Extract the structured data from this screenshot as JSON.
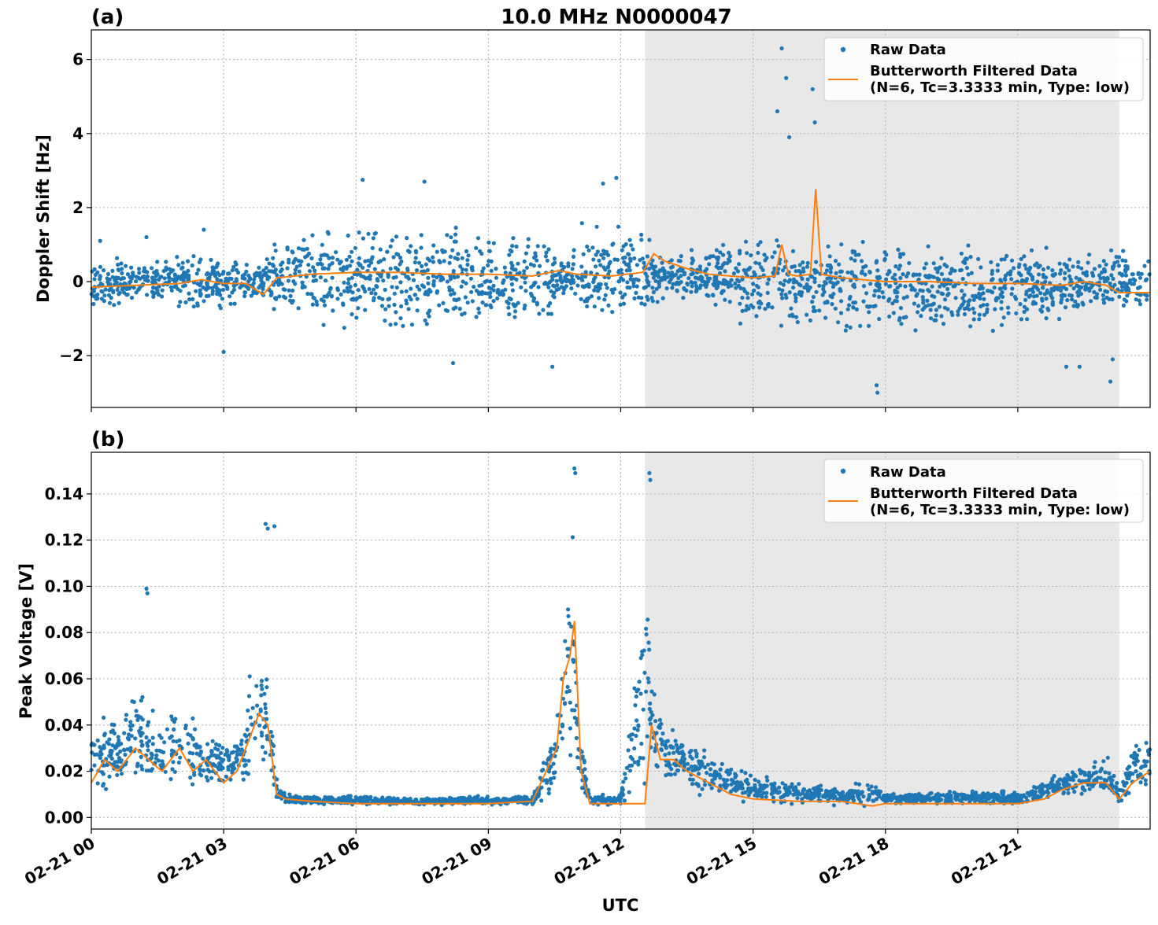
{
  "figure": {
    "title": "10.0 MHz N0000047",
    "xlabel": "UTC",
    "colors": {
      "raw": "#1f77b4",
      "filtered": "#ff7f0e",
      "shade": "#e8e8e8"
    }
  },
  "legend": {
    "raw_label": "Raw Data",
    "filtered_label_line1": "Butterworth Filtered Data",
    "filtered_label_line2": "(N=6, Tc=3.3333 min, Type: low)"
  },
  "chart_data": [
    {
      "type": "scatter",
      "panel_label": "(a)",
      "title": "10.0 MHz N0000047",
      "ylabel": "Doppler Shift [Hz]",
      "xlim": [
        0,
        24
      ],
      "ylim": [
        -3.4,
        6.8
      ],
      "yticks": [
        -2,
        0,
        2,
        4,
        6
      ],
      "ytick_labels": [
        "−2",
        "0",
        "2",
        "4",
        "6"
      ],
      "xticks": [
        0,
        3,
        6,
        9,
        12,
        15,
        18,
        21
      ],
      "xtick_labels": [
        "02-21 00",
        "02-21 03",
        "02-21 06",
        "02-21 09",
        "02-21 12",
        "02-21 15",
        "02-21 18",
        "02-21 21"
      ],
      "shaded_interval": [
        12.55,
        23.3
      ],
      "grid": true,
      "legend_position": "top-right",
      "series": [
        {
          "name": "Raw Data",
          "kind": "scatter",
          "x": [
            0.0,
            1.0,
            2.0,
            3.0,
            3.9,
            4.2,
            5.0,
            6.0,
            7.0,
            8.0,
            9.0,
            10.0,
            10.6,
            10.75,
            11.0,
            12.0,
            12.55,
            13.0,
            14.0,
            15.0,
            15.5,
            16.0,
            17.0,
            18.0,
            19.0,
            20.0,
            21.0,
            22.0,
            23.0,
            24.0
          ],
          "y_min": [
            -1.0,
            -0.8,
            -0.9,
            -0.9,
            -0.6,
            -1.2,
            -1.5,
            -1.6,
            -1.7,
            -1.6,
            -1.6,
            -1.5,
            -1.1,
            -0.4,
            -1.4,
            -1.4,
            -1.0,
            -0.5,
            -0.8,
            -1.5,
            -1.8,
            -1.6,
            -1.7,
            -1.6,
            -1.6,
            -1.6,
            -1.4,
            -1.3,
            -1.1,
            -1.0
          ],
          "y_max": [
            0.8,
            0.8,
            0.9,
            0.9,
            0.5,
            1.6,
            1.8,
            1.7,
            1.8,
            1.7,
            1.6,
            1.6,
            1.2,
            0.4,
            1.8,
            1.8,
            1.4,
            0.8,
            1.2,
            1.4,
            1.6,
            1.5,
            1.4,
            1.4,
            1.3,
            1.3,
            1.2,
            1.1,
            1.1,
            0.9
          ],
          "outlier_x": [
            15.55,
            15.65,
            15.75,
            15.82,
            16.35,
            16.4,
            0.2,
            1.25,
            2.55,
            3.0,
            6.15,
            7.55,
            8.2,
            10.45,
            11.6,
            11.9,
            17.8,
            17.82,
            22.1,
            22.4,
            23.1,
            23.15
          ],
          "outlier_y": [
            4.6,
            6.3,
            5.5,
            3.9,
            5.2,
            4.3,
            1.1,
            1.2,
            1.4,
            -1.9,
            2.75,
            2.7,
            -2.2,
            -2.3,
            2.65,
            2.8,
            -2.8,
            -3.0,
            -2.3,
            -2.3,
            -2.7,
            -2.1
          ]
        },
        {
          "name": "Butterworth Filtered Data (N=6, Tc=3.3333 min, Type: low)",
          "kind": "line",
          "x": [
            0.0,
            1.0,
            2.0,
            2.5,
            3.0,
            3.5,
            3.9,
            4.2,
            5.0,
            6.0,
            7.0,
            8.0,
            9.0,
            10.0,
            10.6,
            11.0,
            11.8,
            12.5,
            12.75,
            13.0,
            13.5,
            14.0,
            15.0,
            15.5,
            15.65,
            15.8,
            16.0,
            16.3,
            16.42,
            16.55,
            17.0,
            18.0,
            19.0,
            20.0,
            21.0,
            22.0,
            22.5,
            23.0,
            23.3,
            24.0
          ],
          "y": [
            -0.15,
            -0.1,
            -0.05,
            0.05,
            -0.05,
            -0.05,
            -0.35,
            0.1,
            0.2,
            0.25,
            0.25,
            0.2,
            0.2,
            0.15,
            0.3,
            0.2,
            0.15,
            0.25,
            0.75,
            0.55,
            0.35,
            0.2,
            0.1,
            0.15,
            1.0,
            0.2,
            0.15,
            0.2,
            2.5,
            0.2,
            0.1,
            0.0,
            0.0,
            -0.05,
            -0.05,
            -0.1,
            0.0,
            -0.1,
            -0.3,
            -0.3
          ]
        }
      ]
    },
    {
      "type": "scatter",
      "panel_label": "(b)",
      "xlabel": "UTC",
      "ylabel": "Peak Voltage [V]",
      "xlim": [
        0,
        24
      ],
      "ylim": [
        -0.005,
        0.158
      ],
      "yticks": [
        0.0,
        0.02,
        0.04,
        0.06,
        0.08,
        0.1,
        0.12,
        0.14
      ],
      "ytick_labels": [
        "0.00",
        "0.02",
        "0.04",
        "0.06",
        "0.08",
        "0.10",
        "0.12",
        "0.14"
      ],
      "xticks": [
        0,
        3,
        6,
        9,
        12,
        15,
        18,
        21
      ],
      "xtick_labels": [
        "02-21 00",
        "02-21 03",
        "02-21 06",
        "02-21 09",
        "02-21 12",
        "02-21 15",
        "02-21 18",
        "02-21 21"
      ],
      "shaded_interval": [
        12.55,
        23.3
      ],
      "grid": true,
      "legend_position": "top-right",
      "series": [
        {
          "name": "Raw Data",
          "kind": "scatter",
          "x": [
            0.0,
            0.5,
            1.0,
            1.5,
            2.0,
            2.5,
            3.0,
            3.5,
            3.8,
            4.0,
            4.2,
            4.4,
            5.0,
            6.0,
            7.0,
            8.0,
            9.0,
            10.0,
            10.55,
            10.7,
            10.9,
            11.1,
            11.3,
            12.0,
            12.6,
            12.75,
            13.0,
            13.5,
            14.0,
            14.5,
            15.0,
            16.0,
            17.0,
            17.7,
            18.0,
            19.0,
            20.0,
            21.0,
            22.0,
            22.5,
            23.0,
            23.3,
            23.6,
            24.0
          ],
          "y_min": [
            0.008,
            0.01,
            0.008,
            0.01,
            0.008,
            0.01,
            0.008,
            0.01,
            0.012,
            0.01,
            0.006,
            0.005,
            0.005,
            0.005,
            0.005,
            0.005,
            0.005,
            0.005,
            0.006,
            0.02,
            0.015,
            0.006,
            0.005,
            0.005,
            0.008,
            0.015,
            0.012,
            0.01,
            0.008,
            0.006,
            0.005,
            0.005,
            0.005,
            0.003,
            0.005,
            0.005,
            0.005,
            0.005,
            0.008,
            0.008,
            0.008,
            0.005,
            0.008,
            0.008
          ],
          "y_max": [
            0.04,
            0.05,
            0.06,
            0.045,
            0.055,
            0.04,
            0.035,
            0.05,
            0.09,
            0.07,
            0.02,
            0.011,
            0.01,
            0.01,
            0.009,
            0.009,
            0.01,
            0.01,
            0.05,
            0.1,
            0.14,
            0.04,
            0.01,
            0.01,
            0.12,
            0.06,
            0.045,
            0.035,
            0.03,
            0.025,
            0.02,
            0.017,
            0.014,
            0.017,
            0.012,
            0.012,
            0.012,
            0.012,
            0.02,
            0.025,
            0.03,
            0.015,
            0.035,
            0.04
          ],
          "outlier_x": [
            1.25,
            1.27,
            3.95,
            4.0,
            4.15,
            10.95,
            10.97,
            12.65,
            12.67
          ],
          "outlier_y": [
            0.099,
            0.097,
            0.127,
            0.125,
            0.126,
            0.151,
            0.149,
            0.149,
            0.146
          ]
        },
        {
          "name": "Butterworth Filtered Data (N=6, Tc=3.3333 min, Type: low)",
          "kind": "line",
          "x": [
            0.0,
            0.3,
            0.6,
            1.0,
            1.3,
            1.6,
            2.0,
            2.3,
            2.6,
            3.0,
            3.3,
            3.6,
            3.8,
            4.0,
            4.2,
            4.4,
            5.0,
            6.0,
            7.0,
            8.0,
            9.0,
            10.0,
            10.55,
            10.7,
            10.85,
            10.95,
            11.1,
            11.3,
            12.0,
            12.55,
            12.7,
            12.9,
            13.2,
            13.5,
            14.0,
            14.5,
            15.0,
            16.0,
            17.0,
            17.7,
            18.0,
            19.0,
            20.0,
            21.0,
            21.6,
            22.0,
            22.5,
            23.0,
            23.3,
            23.6,
            24.0
          ],
          "y": [
            0.015,
            0.025,
            0.02,
            0.03,
            0.025,
            0.02,
            0.03,
            0.02,
            0.025,
            0.015,
            0.02,
            0.035,
            0.045,
            0.04,
            0.01,
            0.008,
            0.007,
            0.006,
            0.006,
            0.006,
            0.006,
            0.007,
            0.03,
            0.06,
            0.07,
            0.085,
            0.02,
            0.006,
            0.006,
            0.006,
            0.04,
            0.025,
            0.025,
            0.02,
            0.015,
            0.01,
            0.008,
            0.007,
            0.007,
            0.005,
            0.006,
            0.006,
            0.006,
            0.006,
            0.008,
            0.012,
            0.015,
            0.015,
            0.008,
            0.015,
            0.02
          ]
        }
      ]
    }
  ]
}
